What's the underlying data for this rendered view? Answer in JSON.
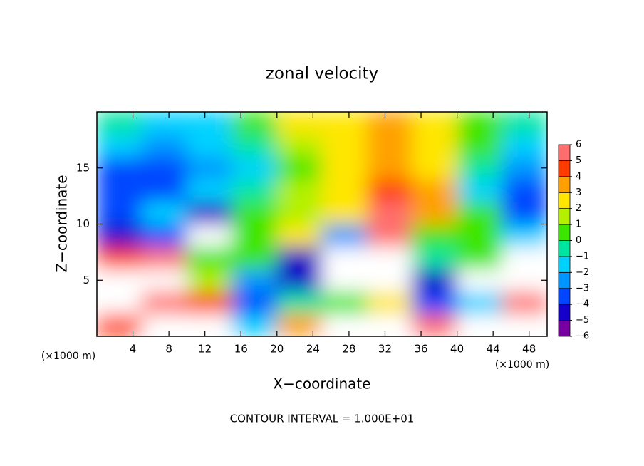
{
  "chart_data": {
    "type": "contour",
    "title": "zonal velocity",
    "x_label": "X−coordinate",
    "y_label": "Z−coordinate",
    "x_unit_label": "(×1000 m)",
    "y_unit_label": "(×1000 m)",
    "footnote": "CONTOUR INTERVAL = 1.000E+01",
    "xlim": [
      0,
      50
    ],
    "ylim": [
      0,
      20
    ],
    "xticks": [
      4,
      8,
      12,
      16,
      20,
      24,
      28,
      32,
      36,
      40,
      44,
      48
    ],
    "yticks": [
      5,
      10,
      15
    ],
    "x": [
      2.5,
      7.5,
      12.5,
      17.5,
      22.5,
      27.5,
      32.5,
      37.5,
      42.5,
      47.5
    ],
    "y": [
      1,
      3,
      5,
      7,
      9,
      11,
      13,
      15,
      17,
      19
    ],
    "z": [
      [
        4,
        8,
        7,
        -2,
        3,
        7,
        8,
        5,
        6,
        8
      ],
      [
        6,
        5,
        4,
        -4,
        -1,
        0,
        2,
        -4,
        -2,
        5
      ],
      [
        8,
        7,
        1,
        -3,
        -5,
        8,
        8,
        -5,
        7,
        8
      ],
      [
        4,
        5,
        0,
        0,
        -5,
        7,
        8,
        -1,
        0,
        7
      ],
      [
        -5,
        -4,
        7,
        0,
        2,
        -3,
        5,
        0,
        0,
        -2
      ],
      [
        -4,
        -2,
        -5,
        0,
        1,
        2,
        5.5,
        3,
        0,
        -4
      ],
      [
        -4,
        -4,
        -2,
        -1,
        1,
        2,
        4,
        3,
        -2,
        -4
      ],
      [
        -4,
        -4,
        -3,
        -2,
        0.5,
        2,
        3,
        2,
        -1,
        -3
      ],
      [
        -2,
        -3,
        -2,
        -1,
        1,
        2,
        3,
        2,
        0,
        -2
      ],
      [
        -1,
        -2,
        -2,
        0,
        2,
        2,
        3,
        2,
        0,
        -1
      ]
    ],
    "colorbar": {
      "levels": [
        {
          "value": -6,
          "label": "−6"
        },
        {
          "value": -5,
          "label": "−5"
        },
        {
          "value": -4,
          "label": "−4"
        },
        {
          "value": -3,
          "label": "−3"
        },
        {
          "value": -2,
          "label": "−2"
        },
        {
          "value": -1,
          "label": "−1"
        },
        0,
        1,
        2,
        3,
        4,
        5,
        6
      ],
      "colors": [
        "#7800a0",
        "#1400c8",
        "#0046ff",
        "#0096ff",
        "#00d2ff",
        "#00e6a0",
        "#3ce600",
        "#b4f000",
        "#ffe600",
        "#ffa000",
        "#ff3c00",
        "#ff6e6e"
      ],
      "over_color": "#ffffff"
    }
  }
}
